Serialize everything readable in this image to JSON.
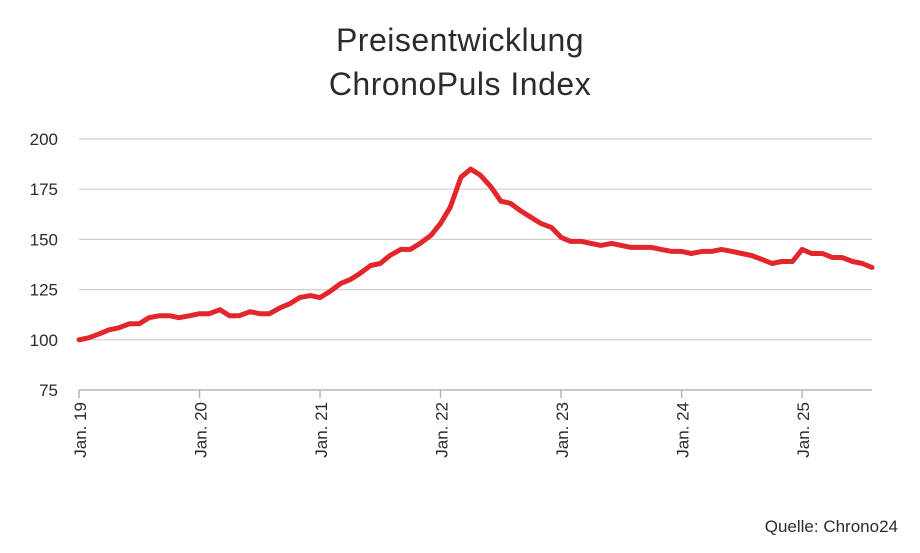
{
  "chart_data": {
    "type": "line",
    "title": "Preisentwicklung",
    "subtitle": "ChronoPuls Index",
    "xlabel": "",
    "ylabel": "",
    "ylim": [
      75,
      200
    ],
    "yticks": [
      75,
      100,
      125,
      150,
      175,
      200
    ],
    "xticks": [
      {
        "label": "Jan. 19",
        "x": 2019.0
      },
      {
        "label": "Jan. 20",
        "x": 2020.0
      },
      {
        "label": "Jan. 21",
        "x": 2021.0
      },
      {
        "label": "Jan. 22",
        "x": 2022.0
      },
      {
        "label": "Jan. 23",
        "x": 2023.0
      },
      {
        "label": "Jan. 24",
        "x": 2024.0
      },
      {
        "label": "Jan. 25",
        "x": 2025.0
      }
    ],
    "xlim": [
      2019.0,
      2025.58
    ],
    "grid": true,
    "legend": "none",
    "line_color": "#e3262c",
    "series": [
      {
        "x": [
          2019.0,
          2019.08,
          2019.17,
          2019.25,
          2019.33,
          2019.42,
          2019.5,
          2019.58,
          2019.67,
          2019.75,
          2019.83,
          2019.92,
          2020.0,
          2020.08,
          2020.17,
          2020.25,
          2020.33,
          2020.42,
          2020.5,
          2020.58,
          2020.67,
          2020.75,
          2020.83,
          2020.92,
          2021.0,
          2021.08,
          2021.17,
          2021.25,
          2021.33,
          2021.42,
          2021.5,
          2021.58,
          2021.67,
          2021.75,
          2021.83,
          2021.92,
          2022.0,
          2022.08,
          2022.17,
          2022.25,
          2022.33,
          2022.42,
          2022.5,
          2022.58,
          2022.67,
          2022.75,
          2022.83,
          2022.92,
          2023.0,
          2023.08,
          2023.17,
          2023.25,
          2023.33,
          2023.42,
          2023.5,
          2023.58,
          2023.67,
          2023.75,
          2023.83,
          2023.92,
          2024.0,
          2024.08,
          2024.17,
          2024.25,
          2024.33,
          2024.42,
          2024.5,
          2024.58,
          2024.67,
          2024.75,
          2024.83,
          2024.92,
          2025.0,
          2025.08,
          2025.17,
          2025.25,
          2025.33,
          2025.42,
          2025.5,
          2025.58
        ],
        "y": [
          100,
          101,
          103,
          105,
          106,
          108,
          108,
          111,
          112,
          112,
          111,
          112,
          113,
          113,
          115,
          112,
          112,
          114,
          113,
          113,
          116,
          118,
          121,
          122,
          121,
          124,
          128,
          130,
          133,
          137,
          138,
          142,
          145,
          145,
          148,
          152,
          158,
          166,
          181,
          185,
          182,
          176,
          169,
          168,
          164,
          161,
          158,
          156,
          151,
          149,
          149,
          148,
          147,
          148,
          147,
          146,
          146,
          146,
          145,
          144,
          144,
          143,
          144,
          144,
          145,
          144,
          143,
          142,
          140,
          138,
          139,
          139,
          145,
          143,
          143,
          141,
          141,
          139,
          138,
          136
        ]
      }
    ]
  },
  "source": "Quelle: Chrono24"
}
